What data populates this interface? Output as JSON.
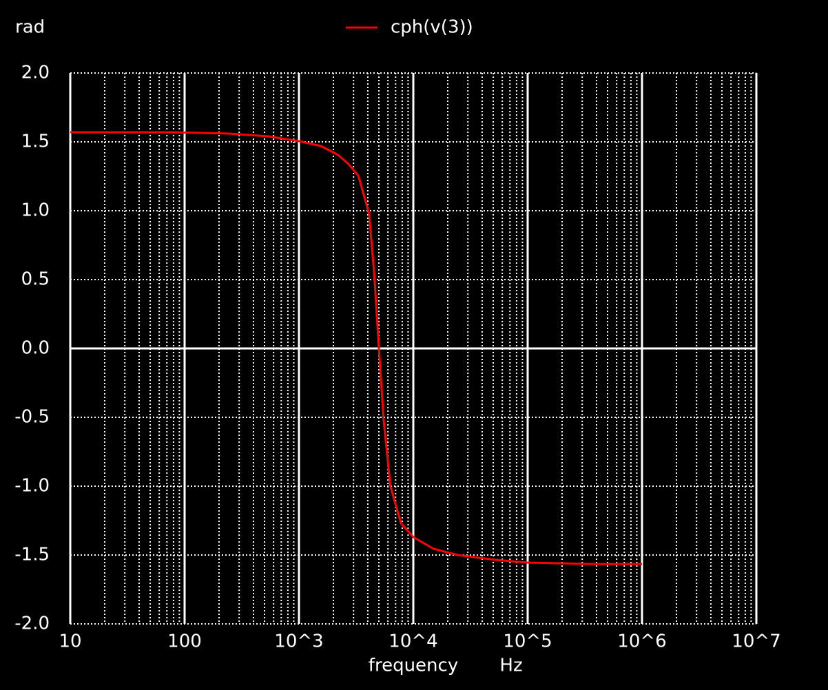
{
  "chart_data": {
    "type": "line",
    "y_label": "rad",
    "x_label": "frequency",
    "x_unit": "Hz",
    "log_x": true,
    "grid": true,
    "x": [
      10,
      78,
      245,
      540,
      1000,
      1550,
      2200,
      2700,
      3300,
      4100,
      4560,
      5000,
      5500,
      6300,
      7800,
      10000,
      15000,
      24500,
      52000,
      100000,
      370000,
      1000000
    ],
    "series": [
      {
        "name": "cph(v(3))",
        "color": "#ff0000",
        "values": [
          1.57,
          1.57,
          1.56,
          1.54,
          1.505,
          1.47,
          1.405,
          1.34,
          1.255,
          0.98,
          0.53,
          0.0,
          -0.52,
          -1.0,
          -1.27,
          -1.37,
          -1.455,
          -1.5,
          -1.535,
          -1.555,
          -1.565,
          -1.565
        ]
      }
    ],
    "xlim": [
      10,
      10000000
    ],
    "xticks": [
      10,
      100,
      {
        "value": 1000,
        "label": "10^3"
      },
      {
        "value": 10000,
        "label": "10^4"
      },
      {
        "value": 100000,
        "label": "10^5"
      },
      {
        "value": 1000000,
        "label": "10^6"
      },
      {
        "value": 10000000,
        "label": "10^7"
      }
    ],
    "ylim": [
      -2,
      2
    ],
    "yticks": [
      {
        "value": -2,
        "label": "-2.0"
      },
      -1.5,
      {
        "value": -1,
        "label": "-1.0"
      },
      -0.5,
      {
        "value": 0,
        "label": "0.0"
      },
      0.5,
      {
        "value": 1,
        "label": "1.0"
      },
      1.5,
      {
        "value": 2,
        "label": "2.0"
      }
    ]
  }
}
